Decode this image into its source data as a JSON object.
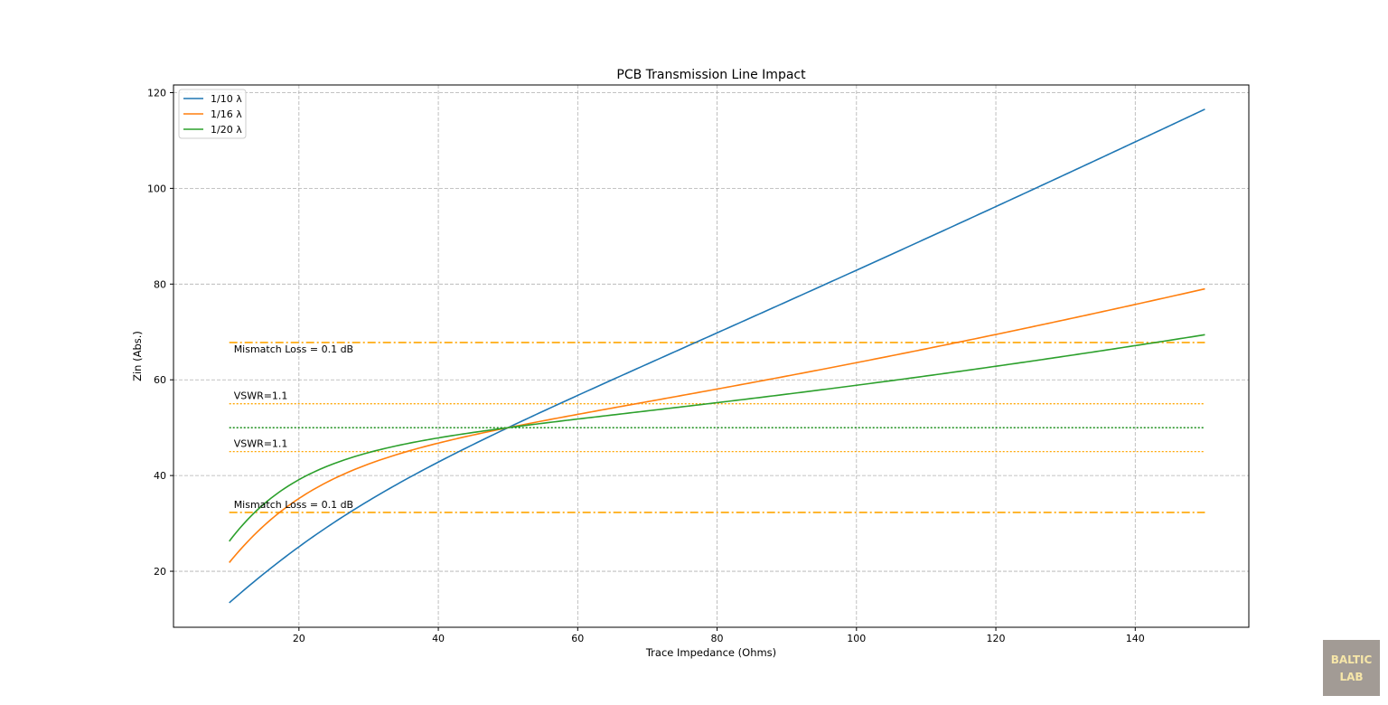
{
  "chart_data": {
    "type": "line",
    "title": "PCB Transmission Line Impact",
    "xlabel": "Trace Impedance (Ohms)",
    "ylabel": "Zin (Abs.)",
    "xlim": [
      2,
      156.3
    ],
    "ylim": [
      8.3,
      121.6
    ],
    "xticks": [
      20,
      40,
      60,
      80,
      100,
      120,
      140
    ],
    "yticks": [
      20,
      40,
      60,
      80,
      100,
      120
    ],
    "grid": true,
    "legend_position": "upper-left",
    "reference_load": 50,
    "series": [
      {
        "name": "1/10 λ",
        "color": "#1f77b4",
        "fraction": 0.1
      },
      {
        "name": "1/16 λ",
        "color": "#ff7f0e",
        "fraction": 0.0625
      },
      {
        "name": "1/20 λ",
        "color": "#2ca02c",
        "fraction": 0.05
      }
    ],
    "x_range": [
      10,
      150
    ],
    "hlines": [
      {
        "y": 67.8,
        "color": "#ffa500",
        "style": "dashdot",
        "label": "Mismatch Loss = 0.1 dB",
        "label_side": "below"
      },
      {
        "y": 55,
        "color": "#ffa500",
        "style": "dotted",
        "label": "VSWR=1.1",
        "label_side": "above"
      },
      {
        "y": 50,
        "color": "#008000",
        "style": "dotted",
        "label": "",
        "label_side": "none"
      },
      {
        "y": 45,
        "color": "#ffa500",
        "style": "dotted",
        "label": "VSWR=1.1",
        "label_side": "above"
      },
      {
        "y": 32.3,
        "color": "#ffa500",
        "style": "dashdot",
        "label": "Mismatch Loss = 0.1 dB",
        "label_side": "above"
      }
    ],
    "hline_x_range": [
      10,
      150
    ]
  },
  "watermark": {
    "line1": "BALTIC",
    "line2": "LAB"
  }
}
